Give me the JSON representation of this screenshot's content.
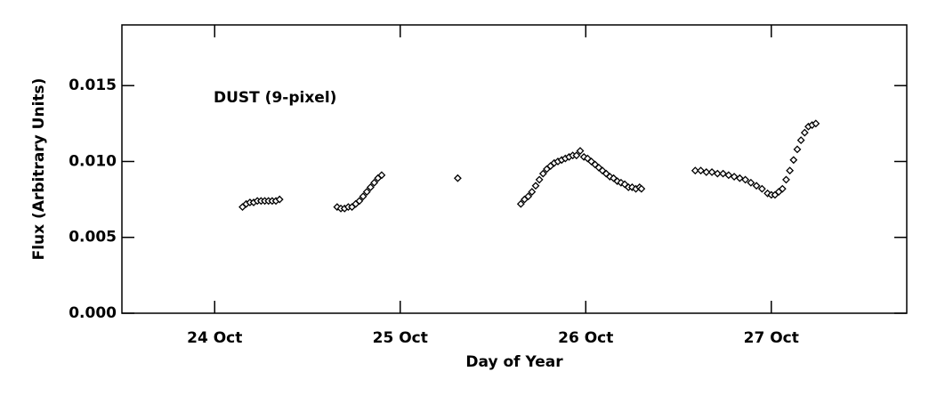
{
  "chart_data": {
    "type": "scatter",
    "annotation": "DUST (9-pixel)",
    "xlabel": "Day of Year",
    "ylabel": "Flux (Arbitrary Units)",
    "color": "#000000",
    "marker": "diamond",
    "xlim": [
      23.5,
      27.73
    ],
    "ylim": [
      0,
      0.019
    ],
    "xticks": [
      {
        "value": 24,
        "label": "24 Oct"
      },
      {
        "value": 25,
        "label": "25 Oct"
      },
      {
        "value": 26,
        "label": "26 Oct"
      },
      {
        "value": 27,
        "label": "27 Oct"
      }
    ],
    "yticks": [
      {
        "value": 0,
        "label": "0.000"
      },
      {
        "value": 0.005,
        "label": "0.005"
      },
      {
        "value": 0.01,
        "label": "0.010"
      },
      {
        "value": 0.015,
        "label": "0.015"
      }
    ],
    "x": [
      24.15,
      24.17,
      24.19,
      24.21,
      24.23,
      24.25,
      24.27,
      24.29,
      24.31,
      24.33,
      24.35,
      24.66,
      24.68,
      24.7,
      24.72,
      24.74,
      24.76,
      24.78,
      24.8,
      24.82,
      24.84,
      24.86,
      24.88,
      24.9,
      25.31,
      25.65,
      25.67,
      25.69,
      25.71,
      25.73,
      25.75,
      25.77,
      25.79,
      25.81,
      25.83,
      25.85,
      25.87,
      25.89,
      25.91,
      25.93,
      25.95,
      25.97,
      25.99,
      26.01,
      26.03,
      26.05,
      26.07,
      26.09,
      26.11,
      26.13,
      26.15,
      26.17,
      26.19,
      26.21,
      26.23,
      26.25,
      26.27,
      26.29,
      26.3,
      26.59,
      26.62,
      26.65,
      26.68,
      26.71,
      26.74,
      26.77,
      26.8,
      26.83,
      26.86,
      26.89,
      26.92,
      26.95,
      26.98,
      27.0,
      27.02,
      27.04,
      27.06,
      27.08,
      27.1,
      27.12,
      27.14,
      27.16,
      27.18,
      27.2,
      27.22,
      27.24
    ],
    "values": [
      0.007,
      0.0072,
      0.0073,
      0.0073,
      0.0074,
      0.0074,
      0.0074,
      0.0074,
      0.0074,
      0.0074,
      0.0075,
      0.007,
      0.0069,
      0.0069,
      0.007,
      0.007,
      0.0072,
      0.0074,
      0.0077,
      0.008,
      0.0083,
      0.0086,
      0.0089,
      0.0091,
      0.0089,
      0.0072,
      0.0075,
      0.0077,
      0.008,
      0.0084,
      0.0088,
      0.0092,
      0.0095,
      0.0097,
      0.0099,
      0.01,
      0.0101,
      0.0102,
      0.0103,
      0.0104,
      0.0104,
      0.0107,
      0.0103,
      0.0102,
      0.01,
      0.0098,
      0.0096,
      0.0094,
      0.0092,
      0.009,
      0.0089,
      0.0087,
      0.0086,
      0.0085,
      0.0083,
      0.0083,
      0.0082,
      0.0083,
      0.0082,
      0.0094,
      0.0094,
      0.0093,
      0.0093,
      0.0092,
      0.0092,
      0.0091,
      0.009,
      0.0089,
      0.0088,
      0.0086,
      0.0084,
      0.0082,
      0.0079,
      0.0078,
      0.0078,
      0.008,
      0.0082,
      0.0088,
      0.0094,
      0.0101,
      0.0108,
      0.0114,
      0.0119,
      0.0123,
      0.0124,
      0.0125
    ]
  }
}
